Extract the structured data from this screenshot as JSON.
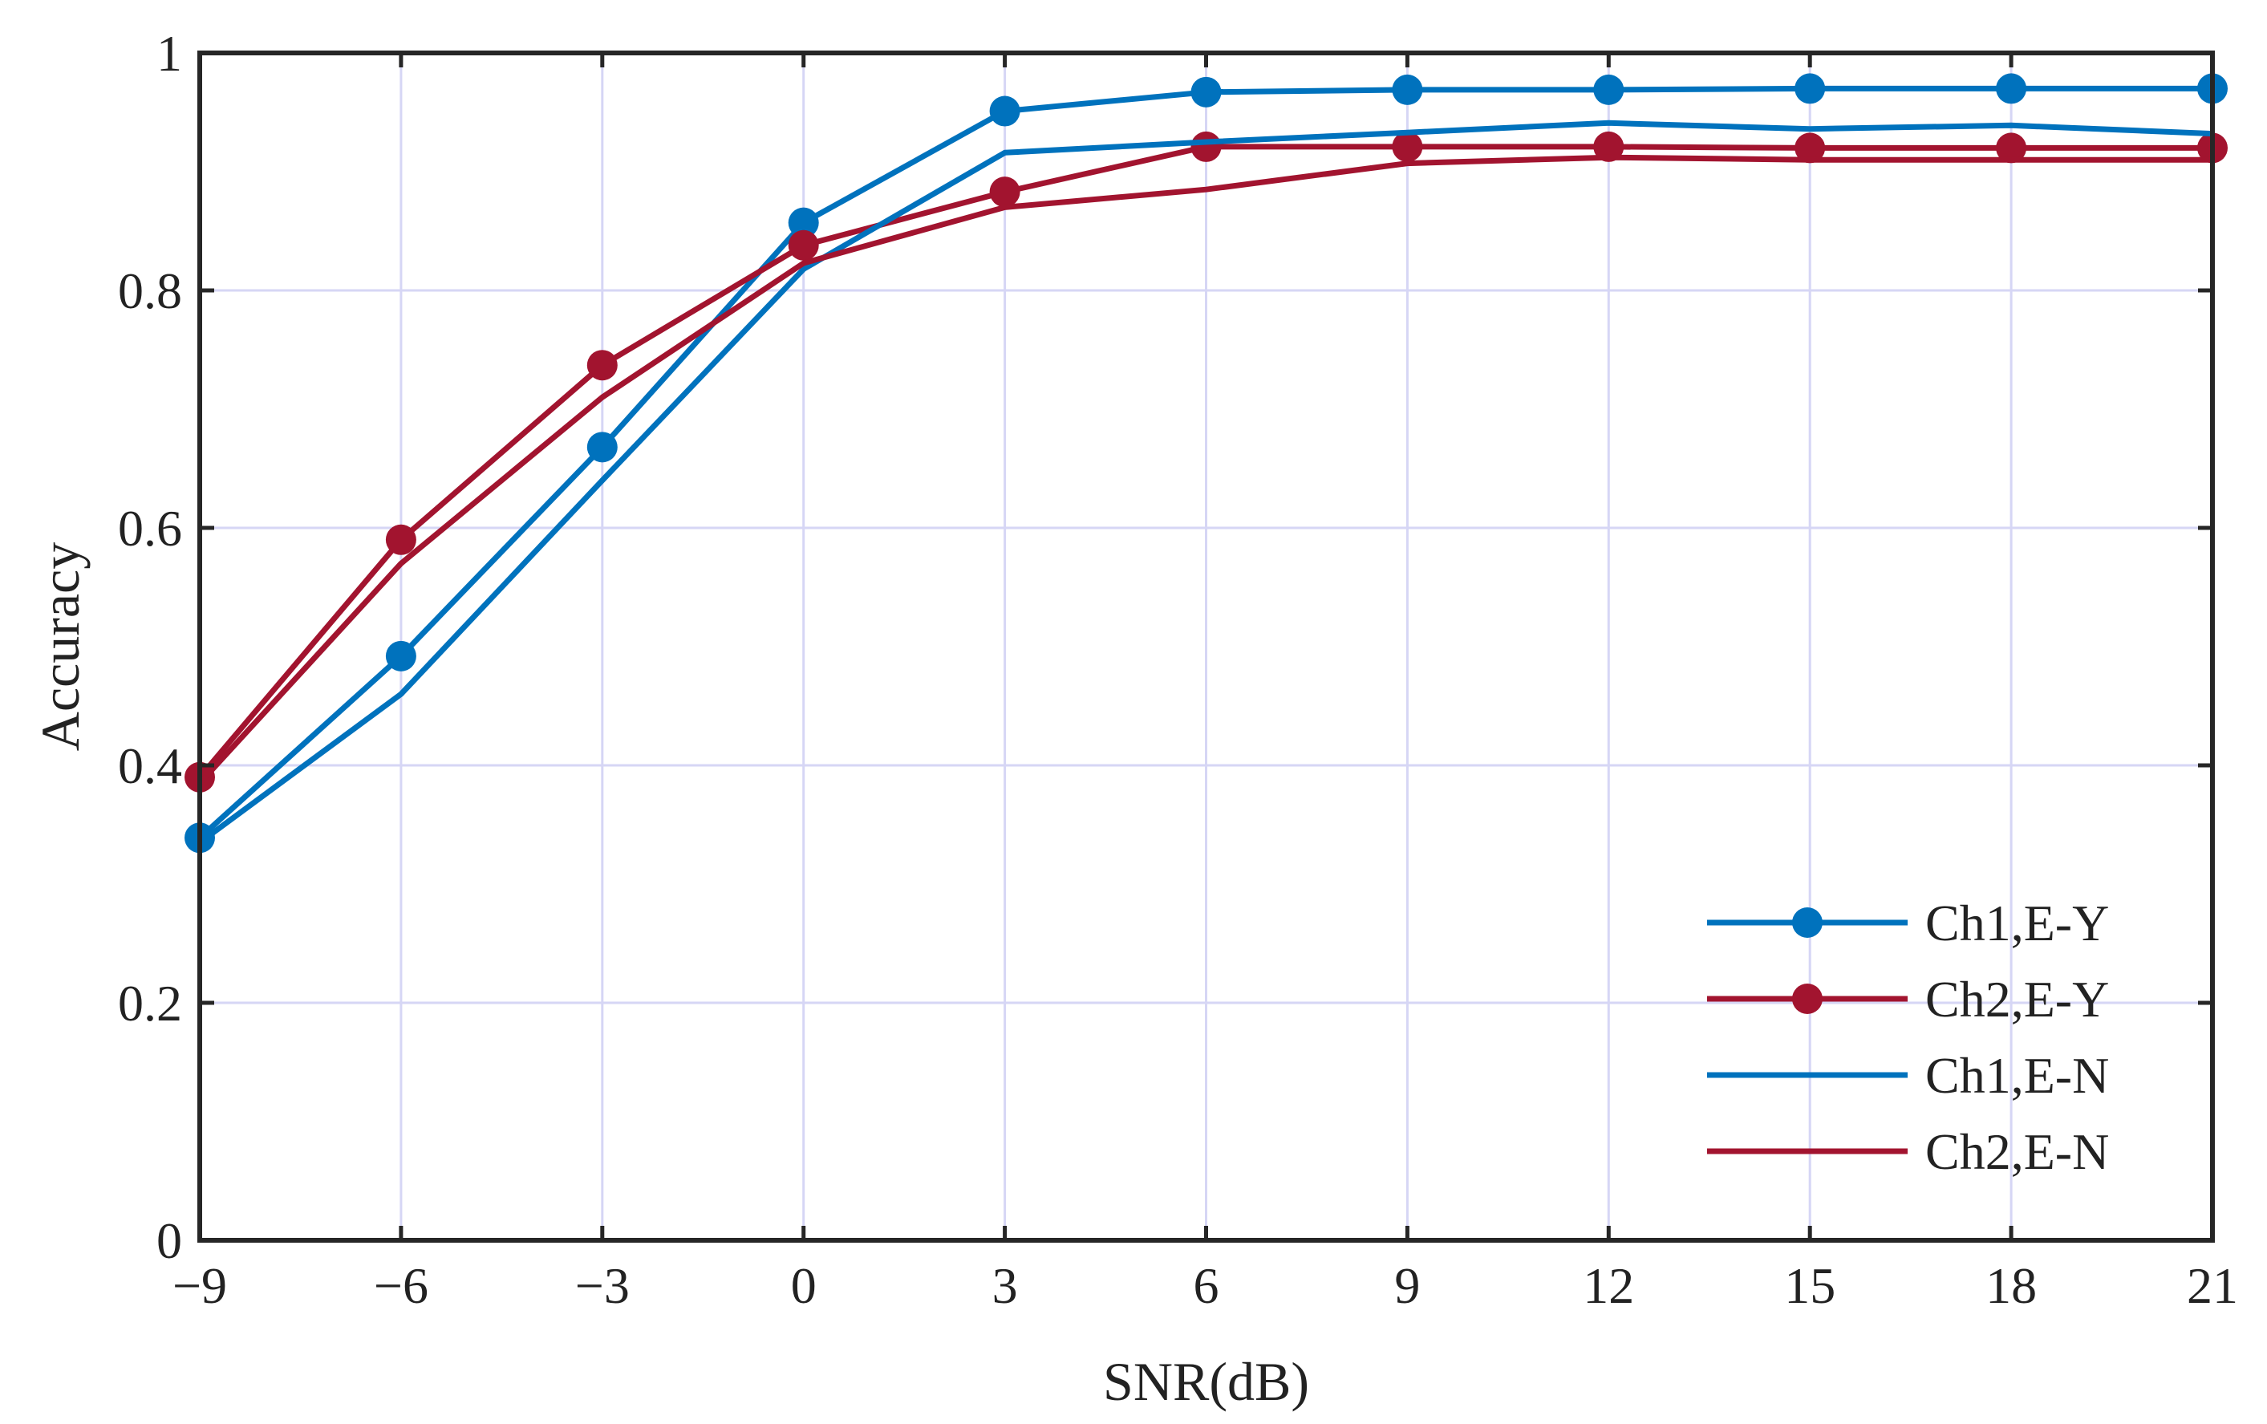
{
  "chart_data": {
    "type": "line",
    "title": "",
    "xlabel": "SNR(dB)",
    "ylabel": "Accuracy",
    "xlim": [
      -9,
      21
    ],
    "ylim": [
      0,
      1
    ],
    "x_ticks": [
      -9,
      -6,
      -3,
      0,
      3,
      6,
      9,
      12,
      15,
      18,
      21
    ],
    "x_tick_labels": [
      "−9",
      "−6",
      "−3",
      "0",
      "3",
      "6",
      "9",
      "12",
      "15",
      "18",
      "21"
    ],
    "y_ticks": [
      0,
      0.2,
      0.4,
      0.6,
      0.8,
      1
    ],
    "y_tick_labels": [
      "0",
      "0.2",
      "0.4",
      "0.6",
      "0.8",
      "1"
    ],
    "grid": true,
    "legend_position": "bottom-right",
    "x": [
      -9,
      -6,
      -3,
      0,
      3,
      6,
      9,
      12,
      15,
      18,
      21
    ],
    "series": [
      {
        "name": "Ch1,E-Y",
        "color": "#0072BD",
        "marker": "circle",
        "values": [
          0.339,
          0.492,
          0.668,
          0.857,
          0.951,
          0.967,
          0.969,
          0.969,
          0.97,
          0.97,
          0.97
        ]
      },
      {
        "name": "Ch2,E-Y",
        "color": "#A2142F",
        "marker": "circle",
        "values": [
          0.39,
          0.59,
          0.737,
          0.838,
          0.883,
          0.921,
          0.921,
          0.921,
          0.92,
          0.92,
          0.92
        ]
      },
      {
        "name": "Ch1,E-N",
        "color": "#0072BD",
        "marker": "none",
        "values": [
          0.335,
          0.46,
          0.64,
          0.818,
          0.916,
          0.925,
          0.933,
          0.941,
          0.936,
          0.939,
          0.932
        ]
      },
      {
        "name": "Ch2,E-N",
        "color": "#A2142F",
        "marker": "none",
        "values": [
          0.385,
          0.57,
          0.71,
          0.823,
          0.87,
          0.885,
          0.907,
          0.912,
          0.91,
          0.91,
          0.91
        ]
      }
    ]
  }
}
